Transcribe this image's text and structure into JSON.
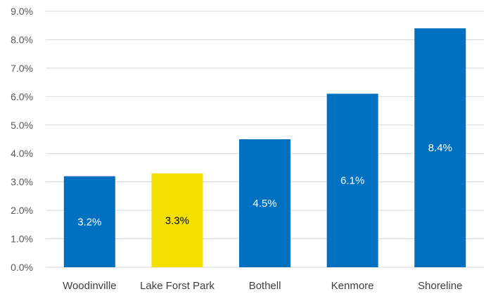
{
  "chart_data": {
    "type": "bar",
    "categories": [
      "Woodinville",
      "Lake Forst Park",
      "Bothell",
      "Kenmore",
      "Shoreline"
    ],
    "values": [
      3.2,
      3.3,
      4.5,
      6.1,
      8.4
    ],
    "data_labels": [
      "3.2%",
      "3.3%",
      "4.5%",
      "6.1%",
      "8.4%"
    ],
    "y_ticks": [
      "0.0%",
      "1.0%",
      "2.0%",
      "3.0%",
      "4.0%",
      "5.0%",
      "6.0%",
      "7.0%",
      "8.0%",
      "9.0%"
    ],
    "ylim": [
      0,
      9
    ],
    "grid": true,
    "title": "",
    "xlabel": "",
    "ylabel": "",
    "colors": {
      "bar": "#0070C0",
      "highlight_bar": "#F2E000",
      "label_on_bar": "#ffffff",
      "label_on_highlight": "#000000",
      "grid": "#D9D9D9"
    },
    "highlight_index": 1
  }
}
